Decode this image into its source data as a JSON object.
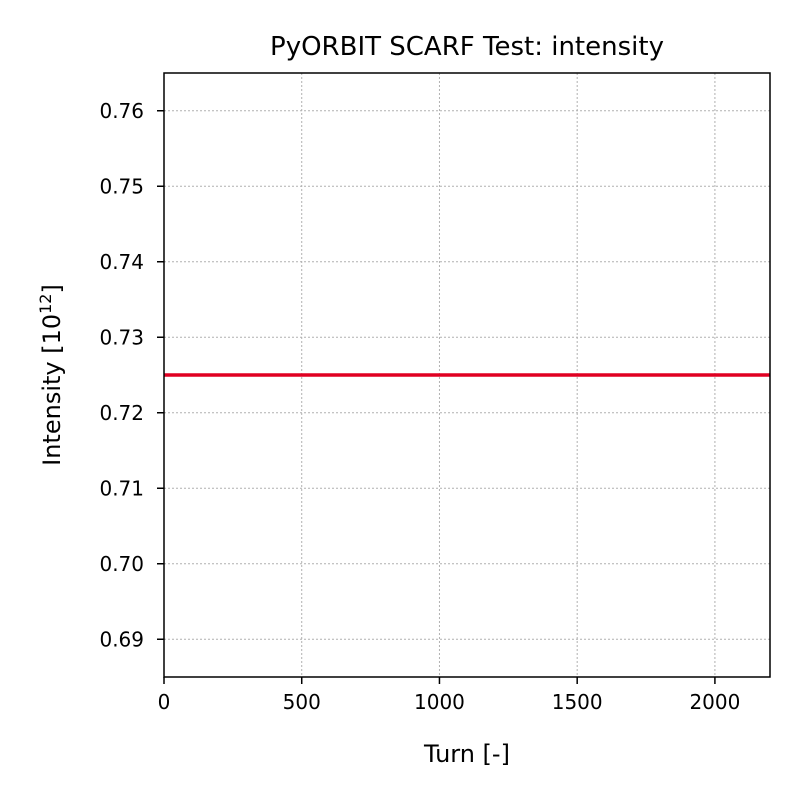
{
  "chart_data": {
    "type": "line",
    "title": "PyORBIT SCARF Test: intensity",
    "xlabel": "Turn [-]",
    "ylabel_main": "Intensity [10",
    "ylabel_exp": "12",
    "ylabel_close": "]",
    "xlim": [
      0,
      2200
    ],
    "ylim": [
      0.685,
      0.765
    ],
    "xticks": [
      0,
      500,
      1000,
      1500,
      2000
    ],
    "xtick_labels": [
      "0",
      "500",
      "1000",
      "1500",
      "2000"
    ],
    "yticks": [
      0.69,
      0.7,
      0.71,
      0.72,
      0.73,
      0.74,
      0.75,
      0.76
    ],
    "ytick_labels": [
      "0.69",
      "0.70",
      "0.71",
      "0.72",
      "0.73",
      "0.74",
      "0.75",
      "0.76"
    ],
    "grid": true,
    "series": [
      {
        "color": "#e00022",
        "x": [
          0,
          2200
        ],
        "y": [
          0.725,
          0.725
        ]
      }
    ]
  }
}
